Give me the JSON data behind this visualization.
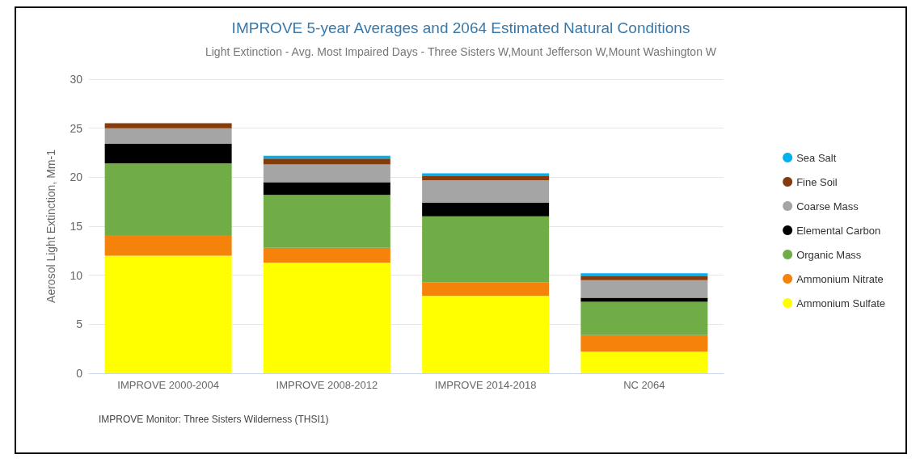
{
  "chart_data": {
    "type": "bar",
    "stacked": true,
    "title": "IMPROVE 5-year Averages and 2064 Estimated Natural Conditions",
    "subtitle": "Light Extinction - Avg. Most Impaired Days - Three Sisters W,Mount Jefferson W,Mount Washington W",
    "ylabel": "Aerosol Light Extinction, Mm-1",
    "categories": [
      "IMPROVE 2000-2004",
      "IMPROVE 2008-2012",
      "IMPROVE 2014-2018",
      "NC 2064"
    ],
    "series": [
      {
        "name": "Ammonium Sulfate",
        "color": "#ffff00",
        "values": [
          12.0,
          11.3,
          7.9,
          2.2
        ]
      },
      {
        "name": "Ammonium Nitrate",
        "color": "#f5820a",
        "values": [
          2.1,
          1.5,
          1.4,
          1.7
        ]
      },
      {
        "name": "Organic Mass",
        "color": "#70ad47",
        "values": [
          7.3,
          5.4,
          6.7,
          3.4
        ]
      },
      {
        "name": "Elemental Carbon",
        "color": "#000000",
        "values": [
          2.0,
          1.3,
          1.4,
          0.4
        ]
      },
      {
        "name": "Coarse Mass",
        "color": "#a5a5a5",
        "values": [
          1.6,
          1.8,
          2.3,
          1.8
        ]
      },
      {
        "name": "Fine Soil",
        "color": "#843c0c",
        "values": [
          0.5,
          0.6,
          0.4,
          0.4
        ]
      },
      {
        "name": "Sea Salt",
        "color": "#00b0f0",
        "values": [
          0,
          0.3,
          0.3,
          0.3
        ]
      }
    ],
    "ylim": [
      0,
      30
    ],
    "yticks": [
      0,
      5,
      10,
      15,
      20,
      25,
      30
    ],
    "grid": "y",
    "legend": "right",
    "annotations": [
      "IMPROVE Monitor: Three Sisters Wilderness (THSI1)"
    ]
  }
}
